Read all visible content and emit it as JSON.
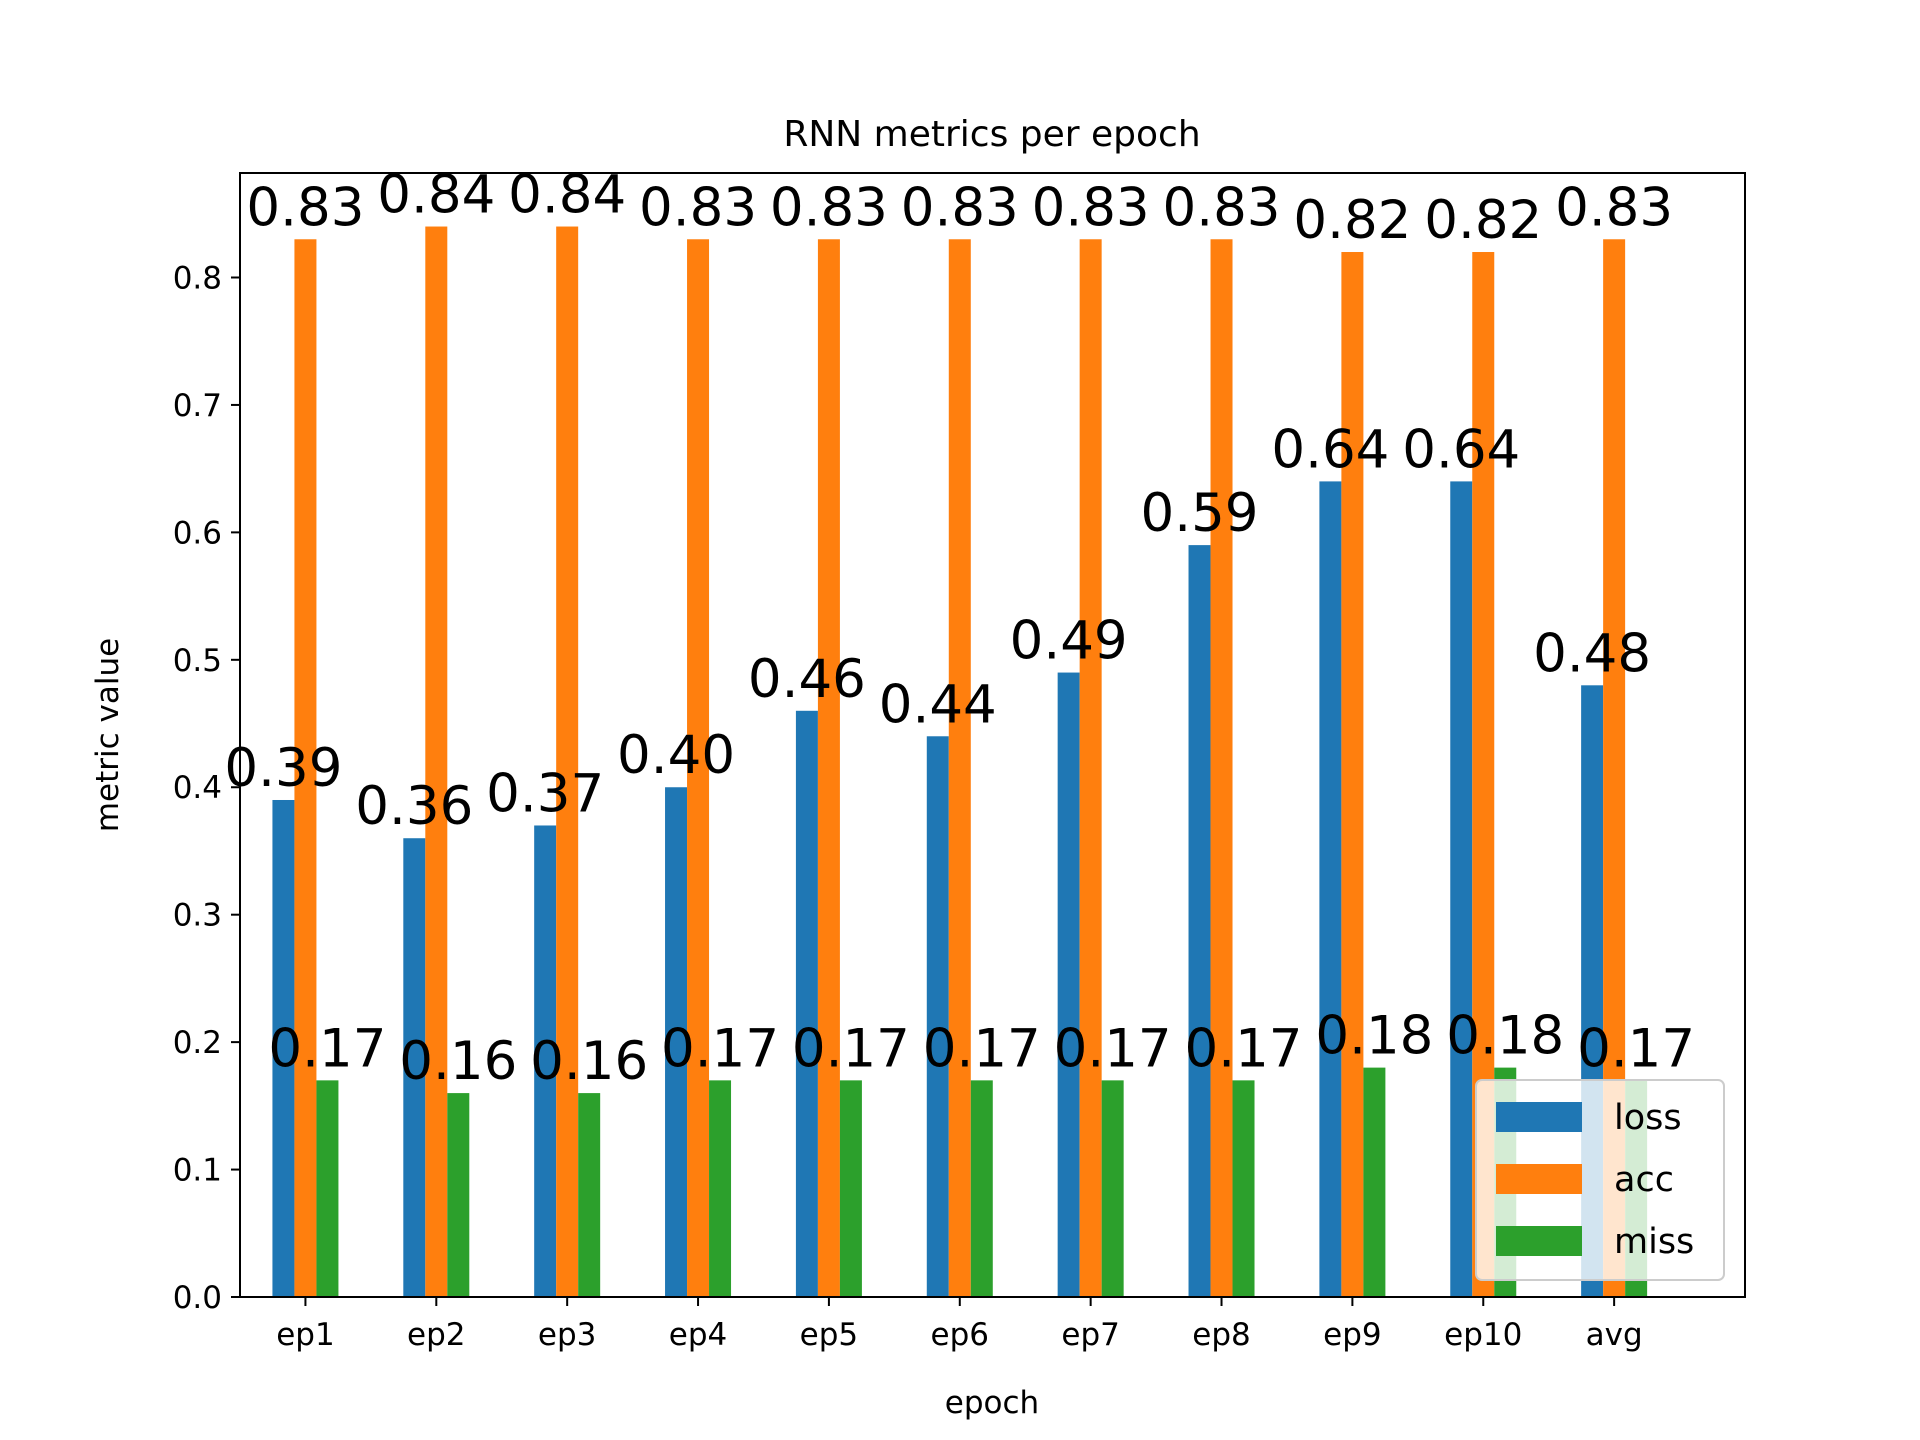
{
  "chart_data": {
    "type": "bar",
    "title": "RNN metrics per epoch",
    "xlabel": "epoch",
    "ylabel": "metric value",
    "categories": [
      "ep1",
      "ep2",
      "ep3",
      "ep4",
      "ep5",
      "ep6",
      "ep7",
      "ep8",
      "ep9",
      "ep10",
      "avg"
    ],
    "series": [
      {
        "name": "loss",
        "color": "#1f77b4",
        "values": [
          0.39,
          0.36,
          0.37,
          0.4,
          0.46,
          0.44,
          0.49,
          0.59,
          0.64,
          0.64,
          0.48
        ],
        "labels": [
          "0.39",
          "0.36",
          "0.37",
          "0.40",
          "0.46",
          "0.44",
          "0.49",
          "0.59",
          "0.64",
          "0.64",
          "0.48"
        ]
      },
      {
        "name": "acc",
        "color": "#ff7f0e",
        "values": [
          0.83,
          0.84,
          0.84,
          0.83,
          0.83,
          0.83,
          0.83,
          0.83,
          0.82,
          0.82,
          0.83
        ],
        "labels": [
          "0.83",
          "0.84",
          "0.84",
          "0.83",
          "0.83",
          "0.83",
          "0.83",
          "0.83",
          "0.82",
          "0.82",
          "0.83"
        ]
      },
      {
        "name": "miss",
        "color": "#2ca02c",
        "values": [
          0.17,
          0.16,
          0.16,
          0.17,
          0.17,
          0.17,
          0.17,
          0.17,
          0.18,
          0.18,
          0.17
        ],
        "labels": [
          "0.17",
          "0.16",
          "0.16",
          "0.17",
          "0.17",
          "0.17",
          "0.17",
          "0.17",
          "0.18",
          "0.18",
          "0.17"
        ]
      }
    ],
    "ylim": [
      0,
      0.882
    ],
    "yticks": [
      "0.0",
      "0.1",
      "0.2",
      "0.3",
      "0.4",
      "0.5",
      "0.6",
      "0.7",
      "0.8"
    ],
    "grid": false,
    "legend": "lower-right"
  }
}
